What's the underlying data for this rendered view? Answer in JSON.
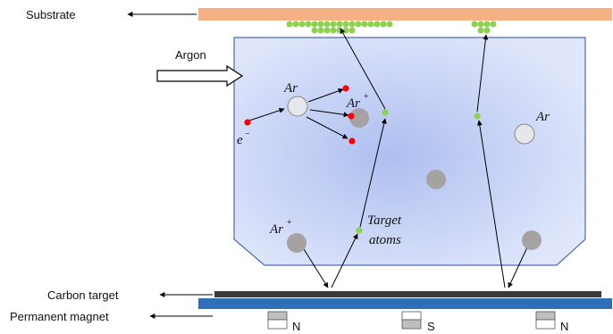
{
  "labels": {
    "substrate": "Substrate",
    "argon_inlet": "Argon",
    "carbon_target": "Carbon target",
    "permanent_magnet": "Permanent magnet"
  },
  "particles": {
    "ar_neutral": "Ar",
    "ar_ion_base": "Ar",
    "ar_ion_charge": "+",
    "electron_base": "e",
    "electron_charge": "−",
    "target_atoms_line1": "Target",
    "target_atoms_line2": "atoms"
  },
  "magnets": [
    {
      "pole": "N"
    },
    {
      "pole": "S"
    },
    {
      "pole": "N"
    }
  ],
  "colors": {
    "substrate": "#f5b184",
    "chamber_center": "#b4c3ee",
    "chamber_edge": "#dde5fa",
    "chamber_border": "#4a6bb3",
    "target": "#3a3a3a",
    "magnet_bar": "#2f6fb7",
    "argon_ion": "#a6a2a2",
    "argon_neutral": "#e5e7ea",
    "electron": "#ff0000",
    "target_atom": "#8ed14f"
  }
}
